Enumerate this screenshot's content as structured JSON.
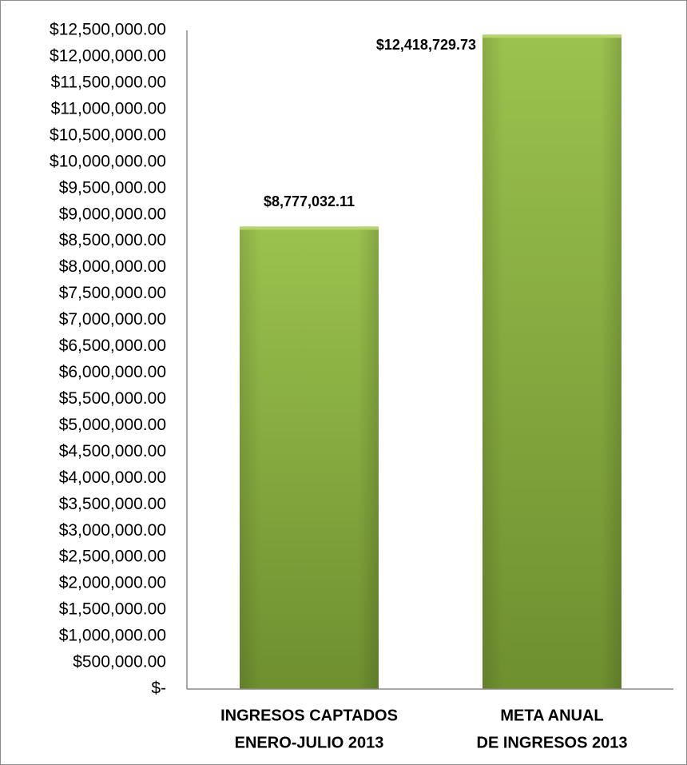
{
  "chart_data": {
    "type": "bar",
    "title": "",
    "xlabel": "",
    "ylabel": "",
    "categories": [
      [
        "INGRESOS CAPTADOS",
        "ENERO-JULIO 2013"
      ],
      [
        "META ANUAL",
        "DE INGRESOS 2013"
      ]
    ],
    "values": [
      8777032.11,
      12418729.73
    ],
    "data_labels": [
      "$8,777,032.11",
      "$12,418,729.73"
    ],
    "ylim": [
      0,
      12500000
    ],
    "ytick_step": 500000,
    "ytick_labels": [
      "$-",
      "$500,000.00",
      "$1,000,000.00",
      "$1,500,000.00",
      "$2,000,000.00",
      "$2,500,000.00",
      "$3,000,000.00",
      "$3,500,000.00",
      "$4,000,000.00",
      "$4,500,000.00",
      "$5,000,000.00",
      "$5,500,000.00",
      "$6,000,000.00",
      "$6,500,000.00",
      "$7,000,000.00",
      "$7,500,000.00",
      "$8,000,000.00",
      "$8,500,000.00",
      "$9,000,000.00",
      "$9,500,000.00",
      "$10,000,000.00",
      "$10,500,000.00",
      "$11,000,000.00",
      "$11,500,000.00",
      "$12,000,000.00",
      "$12,500,000.00"
    ],
    "grid": false,
    "legend": "none",
    "colors": {
      "bar_light": "#9bc24e",
      "bar_dark": "#6f8f30",
      "axis": "#8c8c8c"
    }
  }
}
